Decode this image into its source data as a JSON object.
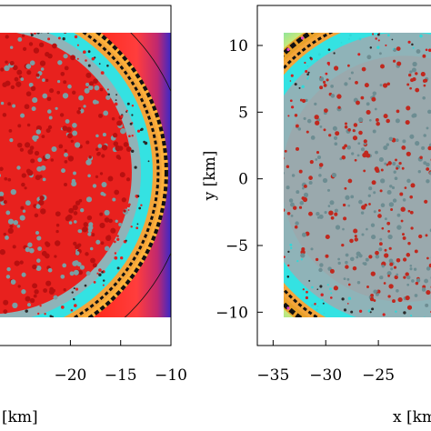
{
  "chart_data": [
    {
      "type": "heatmap",
      "title": "",
      "xlabel": "[km]",
      "ylabel": "",
      "xlim": [
        -27,
        -10
      ],
      "ylim": [
        -12.5,
        13
      ],
      "x_ticks": [
        {
          "value": -20,
          "label": "−20"
        },
        {
          "value": -15,
          "label": "−15"
        },
        {
          "value": -10,
          "label": "−10"
        }
      ],
      "y_ticks": [],
      "field": {
        "shape": "circular intensity pattern with concentric rings",
        "center": [
          -28,
          0.5
        ],
        "radius": 17,
        "colormap": "red core, cyan band, orange/black rings, red-to-blue edge"
      }
    },
    {
      "type": "heatmap",
      "title": "",
      "xlabel": "x [km]",
      "ylabel": "y [km]",
      "xlim": [
        -36.5,
        -20
      ],
      "ylim": [
        -12.5,
        13
      ],
      "x_ticks": [
        {
          "value": -35,
          "label": "−35"
        },
        {
          "value": -30,
          "label": "−30"
        },
        {
          "value": -25,
          "label": "−25"
        }
      ],
      "y_ticks": [
        {
          "value": 10,
          "label": "10"
        },
        {
          "value": 5,
          "label": "5"
        },
        {
          "value": 0,
          "label": "0"
        },
        {
          "value": -5,
          "label": "−5"
        },
        {
          "value": -10,
          "label": "−10"
        }
      ],
      "field": {
        "shape": "circular intensity pattern with concentric rings",
        "center": [
          -22.5,
          0
        ],
        "radius": 12.5,
        "colormap": "red core, cyan band, orange/black rings, yellow-cyan edge"
      }
    }
  ]
}
